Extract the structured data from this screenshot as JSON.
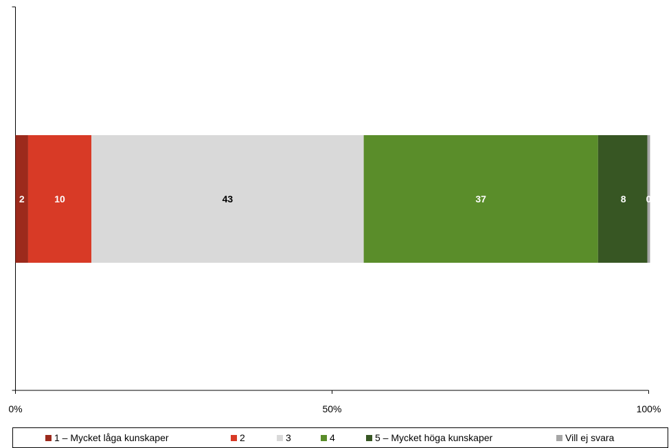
{
  "chart_data": {
    "type": "bar",
    "orientation": "horizontal",
    "stacked": true,
    "categories": [
      ""
    ],
    "series": [
      {
        "name": "1 – Mycket låga kunskaper",
        "values": [
          2
        ],
        "label": "2",
        "color": "#9c2a1c",
        "label_color": "#ffffff"
      },
      {
        "name": "2",
        "values": [
          10
        ],
        "label": "10",
        "color": "#d83a26",
        "label_color": "#ffffff"
      },
      {
        "name": "3",
        "values": [
          43
        ],
        "label": "43",
        "color": "#d9d9d9",
        "label_color": "#000000"
      },
      {
        "name": "4",
        "values": [
          37
        ],
        "label": "37",
        "color": "#5a8d2a",
        "label_color": "#ffffff"
      },
      {
        "name": "5 – Mycket höga kunskaper",
        "values": [
          8
        ],
        "label": "8",
        "color": "#375623",
        "label_color": "#ffffff"
      },
      {
        "name": "Vill ej svara",
        "values": [
          0
        ],
        "label": "0",
        "color": "#a6a6a6",
        "label_color": "#ffffff"
      }
    ],
    "xlim": [
      0,
      100
    ],
    "x_ticks": [
      "0%",
      "50%",
      "100%"
    ],
    "grid": false,
    "legend_position": "bottom",
    "title": "",
    "xlabel": "",
    "ylabel": ""
  }
}
